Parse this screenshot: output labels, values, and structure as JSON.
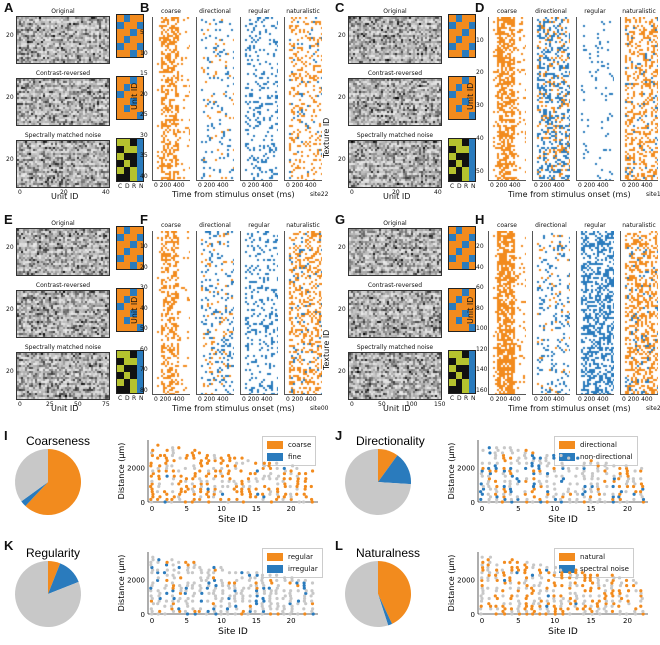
{
  "colors": {
    "orange": "#f28b1e",
    "blue": "#2a7bbd",
    "gray": "#c8c8c8",
    "black": "#111111",
    "olive": "#b5c22e"
  },
  "letters": {
    "A": "A",
    "B": "B",
    "C": "C",
    "D": "D",
    "E": "E",
    "F": "F",
    "G": "G",
    "H": "H",
    "I": "I",
    "J": "J",
    "K": "K",
    "L": "L"
  },
  "heat_titles": {
    "original": "Original",
    "contrast": "Contrast-reversed",
    "noise": "Spectrally matched noise"
  },
  "heat_axes": {
    "ylabel": "Texture ID",
    "xlabel": "Unit ID"
  },
  "grid_labels": [
    "C",
    "D",
    "R",
    "N"
  ],
  "raster_titles": [
    "coarse",
    "directional",
    "regular",
    "naturalistic"
  ],
  "raster_axes": {
    "ylabel": "Unit ID",
    "xlabel": "Time from stimulus onset (ms)",
    "xticks": "0  200 400"
  },
  "sites": {
    "B": "site22",
    "D": "site10",
    "F": "site00",
    "H": "site20"
  },
  "heat_ticks": {
    "A": {
      "y": [
        "20"
      ],
      "x": [
        "0",
        "20",
        "40"
      ]
    },
    "C": {
      "y": [
        "20"
      ],
      "x": [
        "0",
        "20",
        "40"
      ]
    },
    "E": {
      "y": [
        "20"
      ],
      "x": [
        "0",
        "25",
        "50",
        "75"
      ]
    },
    "G": {
      "y": [
        "20"
      ],
      "x": [
        "0",
        "50",
        "100",
        "150"
      ]
    }
  },
  "raster_yticks": {
    "B": [
      "5",
      "10",
      "15",
      "20",
      "25",
      "30",
      "35",
      "40"
    ],
    "D": [
      "10",
      "20",
      "30",
      "40",
      "50"
    ],
    "F": [
      "10",
      "20",
      "30",
      "40",
      "50",
      "60",
      "70",
      "80"
    ],
    "H": [
      "20",
      "40",
      "60",
      "80",
      "100",
      "120",
      "140",
      "160"
    ]
  },
  "bottom_panels": [
    {
      "id": "I",
      "title": "Coarseness",
      "legend": [
        "coarse",
        "fine"
      ]
    },
    {
      "id": "J",
      "title": "Directionality",
      "legend": [
        "directional",
        "non-directional"
      ]
    },
    {
      "id": "K",
      "title": "Regularity",
      "legend": [
        "regular",
        "irregular"
      ]
    },
    {
      "id": "L",
      "title": "Naturalness",
      "legend": [
        "natural",
        "spectral noise"
      ]
    }
  ],
  "scatter_axes": {
    "ylabel": "Distance (μm)",
    "xlabel": "Site ID",
    "yticks": [
      "0",
      "2000"
    ],
    "xticks": [
      "0",
      "5",
      "10",
      "15",
      "20"
    ]
  },
  "chart_data": [
    {
      "type": "pie",
      "title": "Coarseness",
      "labels": [
        "coarse",
        "fine",
        "unselective"
      ],
      "values": [
        62,
        3,
        35
      ]
    },
    {
      "type": "pie",
      "title": "Directionality",
      "labels": [
        "directional",
        "non-directional",
        "unselective"
      ],
      "values": [
        10,
        16,
        74
      ]
    },
    {
      "type": "pie",
      "title": "Regularity",
      "labels": [
        "regular",
        "irregular",
        "unselective"
      ],
      "values": [
        6,
        13,
        81
      ]
    },
    {
      "type": "pie",
      "title": "Naturalness",
      "labels": [
        "natural",
        "spectral noise",
        "unselective"
      ],
      "values": [
        43,
        2,
        55
      ]
    },
    {
      "type": "scatter",
      "xlabel": "Site ID",
      "ylabel": "Distance (μm)",
      "xlim": [
        0,
        23
      ],
      "ylim": [
        0,
        3600
      ],
      "legend": [
        "coarse",
        "fine"
      ]
    },
    {
      "type": "scatter",
      "xlabel": "Site ID",
      "ylabel": "Distance (μm)",
      "xlim": [
        0,
        22
      ],
      "ylim": [
        0,
        3600
      ],
      "legend": [
        "directional",
        "non-directional"
      ]
    },
    {
      "type": "scatter",
      "xlabel": "Site ID",
      "ylabel": "Distance (μm)",
      "xlim": [
        0,
        23
      ],
      "ylim": [
        0,
        3600
      ],
      "legend": [
        "regular",
        "irregular"
      ]
    },
    {
      "type": "scatter",
      "xlabel": "Site ID",
      "ylabel": "Distance (μm)",
      "xlim": [
        0,
        22
      ],
      "ylim": [
        0,
        3600
      ],
      "legend": [
        "natural",
        "spectral noise"
      ]
    }
  ]
}
